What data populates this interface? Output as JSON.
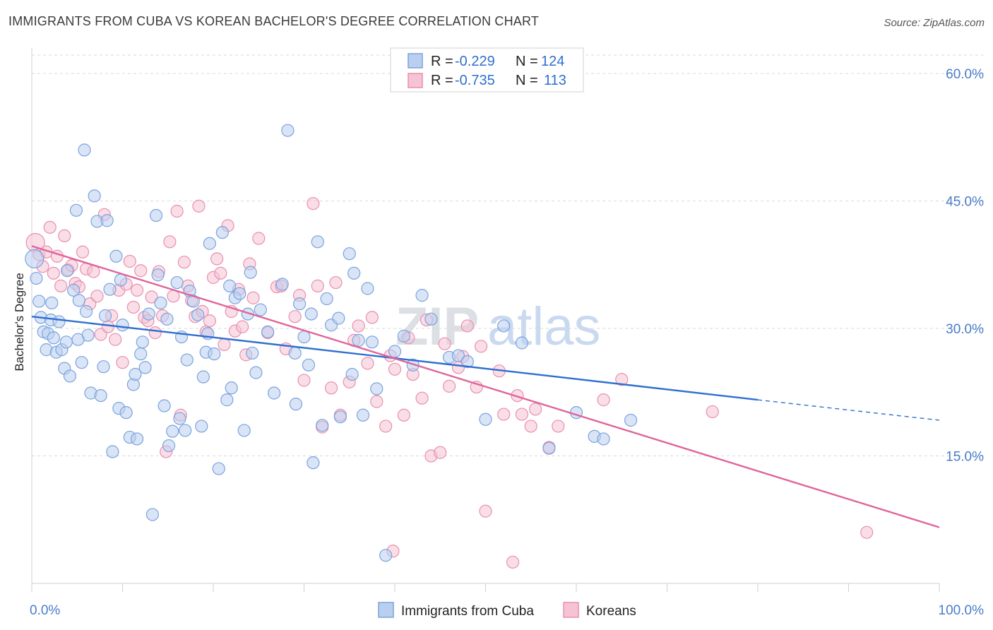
{
  "header": {
    "title": "IMMIGRANTS FROM CUBA VS KOREAN BACHELOR'S DEGREE CORRELATION CHART",
    "source": "Source: ZipAtlas.com"
  },
  "watermark": {
    "part1": "ZIP",
    "part2": "atlas"
  },
  "legend": {
    "rows": [
      {
        "r_label": "R =",
        "r_value": "-0.229",
        "n_label": "N =",
        "n_value": "124"
      },
      {
        "r_label": "R =",
        "r_value": "-0.735",
        "n_label": "N =",
        "n_value": "113"
      }
    ]
  },
  "bottom_legend": {
    "items": [
      {
        "label": "Immigrants from Cuba"
      },
      {
        "label": "Koreans"
      }
    ]
  },
  "colors": {
    "blue_fill": "#b9cff0",
    "blue_stroke": "#7aa3dd",
    "blue_line": "#2f6fd0",
    "pink_fill": "#f6c3d4",
    "pink_stroke": "#e98fae",
    "pink_line": "#e0649a",
    "grid": "#d9d9d9",
    "tick_label": "#4a7cc9"
  },
  "chart_data": {
    "type": "scatter",
    "title": "IMMIGRANTS FROM CUBA VS KOREAN BACHELOR'S DEGREE CORRELATION CHART",
    "xlabel": "",
    "ylabel": "Bachelor's Degree",
    "xlim": [
      0,
      100
    ],
    "ylim": [
      0,
      63
    ],
    "x_tick_labels": [
      "0.0%",
      "100.0%"
    ],
    "y_ticks": [
      15,
      30,
      45,
      60
    ],
    "y_tick_labels": [
      "15.0%",
      "30.0%",
      "45.0%",
      "60.0%"
    ],
    "grid": true,
    "legend_position": "top-center",
    "series": [
      {
        "name": "Immigrants from Cuba",
        "r": -0.229,
        "n": 124,
        "trend": {
          "x0": 0,
          "y0": 31.4,
          "x1": 80,
          "y1": 21.6,
          "dash_to_x": 100,
          "dash_to_y": 19.2
        },
        "points": [
          [
            0.3,
            38.2
          ],
          [
            0.5,
            35.9
          ],
          [
            0.8,
            33.2
          ],
          [
            1.0,
            31.3
          ],
          [
            1.3,
            29.6
          ],
          [
            1.6,
            27.5
          ],
          [
            1.8,
            29.4
          ],
          [
            2.1,
            31.0
          ],
          [
            2.4,
            28.9
          ],
          [
            2.7,
            27.2
          ],
          [
            3.0,
            30.8
          ],
          [
            3.3,
            27.5
          ],
          [
            3.6,
            25.3
          ],
          [
            3.9,
            36.8
          ],
          [
            4.2,
            24.4
          ],
          [
            4.6,
            34.5
          ],
          [
            4.9,
            43.9
          ],
          [
            5.2,
            33.3
          ],
          [
            5.5,
            26.0
          ],
          [
            5.8,
            51.0
          ],
          [
            6.2,
            29.2
          ],
          [
            6.5,
            22.4
          ],
          [
            6.9,
            45.6
          ],
          [
            7.2,
            42.6
          ],
          [
            7.6,
            22.1
          ],
          [
            7.9,
            25.5
          ],
          [
            8.3,
            42.7
          ],
          [
            8.6,
            34.6
          ],
          [
            8.9,
            15.5
          ],
          [
            9.3,
            38.5
          ],
          [
            9.6,
            20.6
          ],
          [
            10.0,
            30.4
          ],
          [
            10.4,
            20.1
          ],
          [
            10.8,
            17.2
          ],
          [
            11.2,
            23.4
          ],
          [
            11.6,
            17.0
          ],
          [
            12.0,
            27.0
          ],
          [
            12.5,
            25.4
          ],
          [
            12.9,
            31.7
          ],
          [
            13.3,
            8.1
          ],
          [
            13.7,
            43.3
          ],
          [
            14.2,
            33.0
          ],
          [
            14.6,
            20.9
          ],
          [
            15.1,
            16.2
          ],
          [
            15.5,
            17.9
          ],
          [
            16.0,
            35.4
          ],
          [
            16.5,
            29.0
          ],
          [
            16.9,
            18.0
          ],
          [
            17.4,
            34.4
          ],
          [
            17.8,
            33.2
          ],
          [
            18.3,
            31.6
          ],
          [
            18.7,
            18.5
          ],
          [
            19.2,
            27.2
          ],
          [
            19.6,
            40.0
          ],
          [
            20.1,
            27.0
          ],
          [
            20.6,
            13.5
          ],
          [
            21.0,
            41.3
          ],
          [
            21.5,
            21.6
          ],
          [
            22.0,
            23.0
          ],
          [
            22.4,
            33.6
          ],
          [
            22.9,
            34.1
          ],
          [
            23.4,
            18.0
          ],
          [
            23.8,
            31.7
          ],
          [
            24.3,
            27.1
          ],
          [
            24.7,
            24.8
          ],
          [
            25.2,
            32.2
          ],
          [
            28.2,
            53.3
          ],
          [
            29.0,
            27.1
          ],
          [
            29.5,
            32.9
          ],
          [
            30.0,
            29.0
          ],
          [
            30.5,
            25.7
          ],
          [
            31.0,
            14.2
          ],
          [
            31.5,
            40.2
          ],
          [
            32.0,
            18.6
          ],
          [
            32.5,
            33.5
          ],
          [
            33.0,
            30.4
          ],
          [
            34.0,
            19.6
          ],
          [
            35.0,
            38.8
          ],
          [
            35.5,
            36.5
          ],
          [
            36.0,
            28.6
          ],
          [
            36.5,
            19.8
          ],
          [
            37.0,
            34.7
          ],
          [
            37.5,
            28.4
          ],
          [
            38.0,
            22.9
          ],
          [
            40.0,
            27.3
          ],
          [
            41.0,
            29.1
          ],
          [
            42.0,
            25.7
          ],
          [
            43.0,
            33.9
          ],
          [
            44.0,
            31.1
          ],
          [
            46.0,
            26.6
          ],
          [
            47.0,
            26.8
          ],
          [
            48.0,
            26.1
          ],
          [
            50.0,
            19.3
          ],
          [
            52.0,
            30.3
          ],
          [
            54.0,
            28.3
          ],
          [
            57.0,
            15.9
          ],
          [
            60.0,
            20.1
          ],
          [
            62.0,
            17.3
          ],
          [
            63.0,
            17.0
          ],
          [
            66.0,
            19.2
          ],
          [
            3.8,
            28.4
          ],
          [
            6.0,
            32.0
          ],
          [
            9.8,
            35.7
          ],
          [
            12.2,
            28.4
          ],
          [
            14.9,
            31.1
          ],
          [
            17.1,
            26.3
          ],
          [
            19.4,
            29.4
          ],
          [
            21.8,
            35.0
          ],
          [
            26.0,
            29.6
          ],
          [
            27.6,
            35.2
          ],
          [
            30.8,
            31.7
          ],
          [
            33.8,
            31.2
          ],
          [
            2.2,
            33.0
          ],
          [
            5.1,
            28.7
          ],
          [
            8.1,
            31.5
          ],
          [
            11.4,
            24.6
          ],
          [
            13.9,
            36.3
          ],
          [
            16.3,
            19.4
          ],
          [
            18.9,
            24.3
          ],
          [
            24.1,
            36.6
          ],
          [
            26.7,
            22.4
          ],
          [
            29.1,
            21.1
          ],
          [
            35.3,
            24.6
          ],
          [
            39.0,
            3.3
          ]
        ]
      },
      {
        "name": "Koreans",
        "r": -0.735,
        "n": 113,
        "trend": {
          "x0": 0,
          "y0": 39.7,
          "x1": 100,
          "y1": 6.6
        },
        "points": [
          [
            0.4,
            40.1
          ],
          [
            0.8,
            38.7
          ],
          [
            1.2,
            37.3
          ],
          [
            1.6,
            39.0
          ],
          [
            2.0,
            41.9
          ],
          [
            2.4,
            36.5
          ],
          [
            2.8,
            38.5
          ],
          [
            3.2,
            35.0
          ],
          [
            3.6,
            40.9
          ],
          [
            4.0,
            36.9
          ],
          [
            4.4,
            37.4
          ],
          [
            4.8,
            35.3
          ],
          [
            5.2,
            34.9
          ],
          [
            5.6,
            39.0
          ],
          [
            6.0,
            37.0
          ],
          [
            6.4,
            32.9
          ],
          [
            6.8,
            36.7
          ],
          [
            7.2,
            33.8
          ],
          [
            7.6,
            29.3
          ],
          [
            8.0,
            43.4
          ],
          [
            8.4,
            30.2
          ],
          [
            8.8,
            31.5
          ],
          [
            9.2,
            28.7
          ],
          [
            9.6,
            34.5
          ],
          [
            10.0,
            26.0
          ],
          [
            10.4,
            35.2
          ],
          [
            10.8,
            37.9
          ],
          [
            11.2,
            32.5
          ],
          [
            11.6,
            34.5
          ],
          [
            12.0,
            36.8
          ],
          [
            12.4,
            31.3
          ],
          [
            12.8,
            30.9
          ],
          [
            13.2,
            33.7
          ],
          [
            13.6,
            29.5
          ],
          [
            14.0,
            36.7
          ],
          [
            14.4,
            31.5
          ],
          [
            14.8,
            15.5
          ],
          [
            15.2,
            40.2
          ],
          [
            15.6,
            33.8
          ],
          [
            16.0,
            43.8
          ],
          [
            16.4,
            19.8
          ],
          [
            16.8,
            37.8
          ],
          [
            17.2,
            35.0
          ],
          [
            17.6,
            33.3
          ],
          [
            18.0,
            31.4
          ],
          [
            18.4,
            44.4
          ],
          [
            18.8,
            32.0
          ],
          [
            19.2,
            29.6
          ],
          [
            19.6,
            30.9
          ],
          [
            20.0,
            36.0
          ],
          [
            20.4,
            38.2
          ],
          [
            20.8,
            36.5
          ],
          [
            21.2,
            28.1
          ],
          [
            21.6,
            42.1
          ],
          [
            22.0,
            32.0
          ],
          [
            22.4,
            29.7
          ],
          [
            22.8,
            34.6
          ],
          [
            23.2,
            30.2
          ],
          [
            23.6,
            26.9
          ],
          [
            24.0,
            37.6
          ],
          [
            24.4,
            33.6
          ],
          [
            25.0,
            40.6
          ],
          [
            26.0,
            29.5
          ],
          [
            27.0,
            34.9
          ],
          [
            28.0,
            27.6
          ],
          [
            29.0,
            31.4
          ],
          [
            30.0,
            23.9
          ],
          [
            31.0,
            44.7
          ],
          [
            32.0,
            18.4
          ],
          [
            33.0,
            23.0
          ],
          [
            34.0,
            19.8
          ],
          [
            35.0,
            23.7
          ],
          [
            36.0,
            30.3
          ],
          [
            37.0,
            25.9
          ],
          [
            38.0,
            21.4
          ],
          [
            39.0,
            18.5
          ],
          [
            40.0,
            25.2
          ],
          [
            41.0,
            19.8
          ],
          [
            42.0,
            24.6
          ],
          [
            43.0,
            21.8
          ],
          [
            44.0,
            15.0
          ],
          [
            45.0,
            15.4
          ],
          [
            46.0,
            23.2
          ],
          [
            47.0,
            25.4
          ],
          [
            48.0,
            30.3
          ],
          [
            49.0,
            23.1
          ],
          [
            50.0,
            8.5
          ],
          [
            52.0,
            19.9
          ],
          [
            53.0,
            2.5
          ],
          [
            54.0,
            19.9
          ],
          [
            55.0,
            18.5
          ],
          [
            57.0,
            16.0
          ],
          [
            58.0,
            18.5
          ],
          [
            63.0,
            21.6
          ],
          [
            65.0,
            24.0
          ],
          [
            75.0,
            20.2
          ],
          [
            92.0,
            6.0
          ],
          [
            27.5,
            35.0
          ],
          [
            29.5,
            33.9
          ],
          [
            31.5,
            35.0
          ],
          [
            33.5,
            35.4
          ],
          [
            35.5,
            28.6
          ],
          [
            37.5,
            31.3
          ],
          [
            39.5,
            26.8
          ],
          [
            41.5,
            28.9
          ],
          [
            43.5,
            31.0
          ],
          [
            45.5,
            28.2
          ],
          [
            47.5,
            26.7
          ],
          [
            49.5,
            27.9
          ],
          [
            51.5,
            25.0
          ],
          [
            53.5,
            22.1
          ],
          [
            55.5,
            20.5
          ],
          [
            39.8,
            3.8
          ]
        ]
      }
    ]
  }
}
